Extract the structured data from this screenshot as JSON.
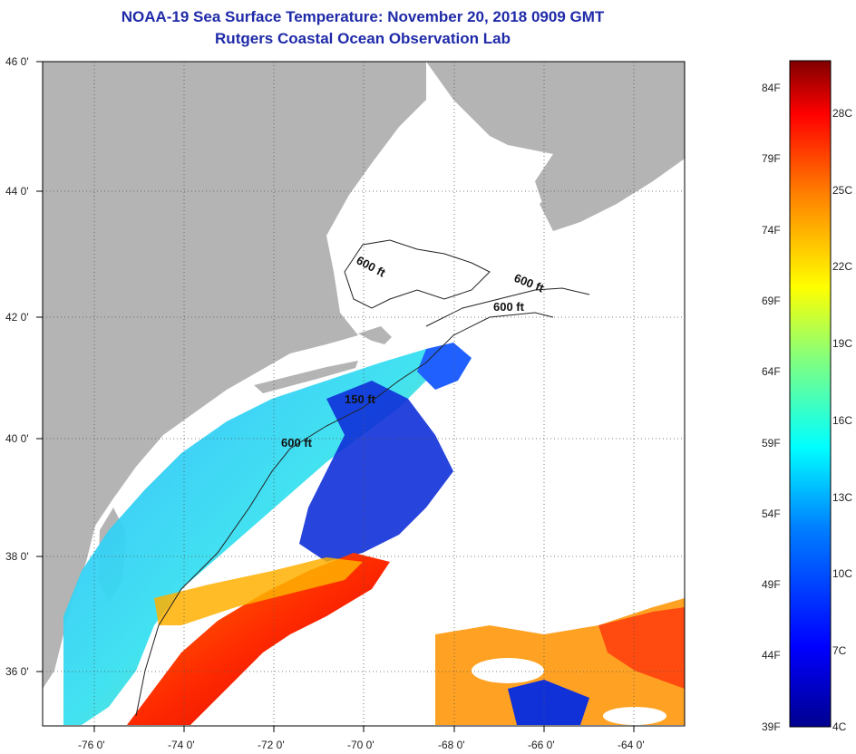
{
  "header": {
    "title": "NOAA-19 Sea Surface Temperature:  November 20, 2018 0909 GMT",
    "subtitle": "Rutgers Coastal Ocean Observation Lab"
  },
  "map": {
    "lat_range": [
      35,
      46
    ],
    "lon_range": [
      -77,
      -63
    ],
    "lat_ticks": [
      "46 0'",
      "44 0'",
      "42 0'",
      "40 0'",
      "38 0'",
      "36 0'"
    ],
    "lon_ticks": [
      "-76 0'",
      "-74 0'",
      "-72 0'",
      "-70 0'",
      "-68 0'",
      "-66 0'",
      "-64 0'"
    ],
    "contour_labels": [
      "600 ft",
      "600 ft",
      "600 ft",
      "150 ft",
      "600 ft"
    ],
    "colors": {
      "land": "#b4b4b4",
      "cloud": "#ffffff",
      "grid": "#555555",
      "title": "#1f2aa8"
    }
  },
  "colorbar": {
    "fahrenheit_labels": [
      "84F",
      "79F",
      "74F",
      "69F",
      "64F",
      "59F",
      "54F",
      "49F",
      "44F",
      "39F"
    ],
    "celsius_labels": [
      "28C",
      "25C",
      "22C",
      "19C",
      "16C",
      "13C",
      "10C",
      "7C",
      "4C"
    ],
    "scale_colors": [
      "#00008f",
      "#0000ff",
      "#0080ff",
      "#00ffff",
      "#80ff80",
      "#ffff00",
      "#ff8000",
      "#ff0000",
      "#800000"
    ]
  }
}
